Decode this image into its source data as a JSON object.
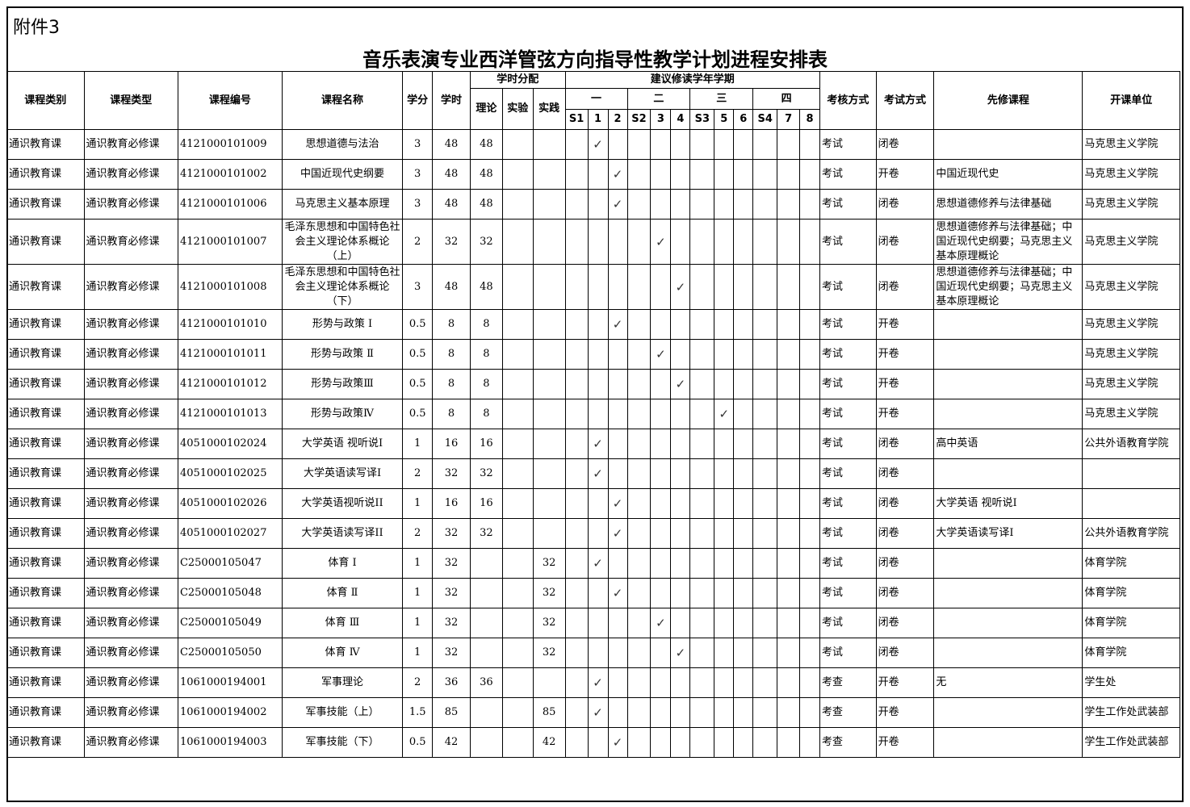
{
  "attachment": "附件3",
  "title": "音乐表演专业西洋管弦方向指导性教学计划进程安排表",
  "headers": {
    "category": "课程类别",
    "type": "课程类型",
    "code": "课程编号",
    "name": "课程名称",
    "credit": "学分",
    "hours": "学时",
    "hour_dist": "学时分配",
    "theory": "理论",
    "experiment": "实验",
    "practice": "实践",
    "semesters": "建议修读学年学期",
    "years": [
      "一",
      "二",
      "三",
      "四"
    ],
    "terms": [
      "S1",
      "1",
      "2",
      "S2",
      "3",
      "4",
      "S3",
      "5",
      "6",
      "S4",
      "7",
      "8"
    ],
    "assess": "考核方式",
    "exam": "考试方式",
    "prereq": "先修课程",
    "dept": "开课单位"
  },
  "check_mark": "✓",
  "rows": [
    {
      "category": "通识教育课",
      "type": "通识教育必修课",
      "code": "4121000101009",
      "name": "思想道德与法治",
      "credit": "3",
      "hours": "48",
      "theory": "48",
      "experiment": "",
      "practice": "",
      "term": "1",
      "assess": "考试",
      "exam": "闭卷",
      "prereq": "",
      "dept": "马克思主义学院"
    },
    {
      "category": "通识教育课",
      "type": "通识教育必修课",
      "code": "4121000101002",
      "name": "中国近现代史纲要",
      "credit": "3",
      "hours": "48",
      "theory": "48",
      "experiment": "",
      "practice": "",
      "term": "2",
      "assess": "考试",
      "exam": "开卷",
      "prereq": "中国近现代史",
      "dept": "马克思主义学院"
    },
    {
      "category": "通识教育课",
      "type": "通识教育必修课",
      "code": "4121000101006",
      "name": "马克思主义基本原理",
      "credit": "3",
      "hours": "48",
      "theory": "48",
      "experiment": "",
      "practice": "",
      "term": "2",
      "assess": "考试",
      "exam": "闭卷",
      "prereq": "思想道德修养与法律基础",
      "dept": "马克思主义学院"
    },
    {
      "category": "通识教育课",
      "type": "通识教育必修课",
      "code": "4121000101007",
      "name": "毛泽东思想和中国特色社会主义理论体系概论（上）",
      "credit": "2",
      "hours": "32",
      "theory": "32",
      "experiment": "",
      "practice": "",
      "term": "3",
      "assess": "考试",
      "exam": "闭卷",
      "prereq": "思想道德修养与法律基础；中国近现代史纲要；马克思主义基本原理概论",
      "dept": "马克思主义学院",
      "tall": true
    },
    {
      "category": "通识教育课",
      "type": "通识教育必修课",
      "code": "4121000101008",
      "name": "毛泽东思想和中国特色社会主义理论体系概论（下）",
      "credit": "3",
      "hours": "48",
      "theory": "48",
      "experiment": "",
      "practice": "",
      "term": "4",
      "assess": "考试",
      "exam": "闭卷",
      "prereq": "思想道德修养与法律基础；中国近现代史纲要；马克思主义基本原理概论",
      "dept": "马克思主义学院",
      "tall": true
    },
    {
      "category": "通识教育课",
      "type": "通识教育必修课",
      "code": "4121000101010",
      "name": "形势与政策 Ⅰ",
      "credit": "0.5",
      "hours": "8",
      "theory": "8",
      "experiment": "",
      "practice": "",
      "term": "2",
      "assess": "考试",
      "exam": "开卷",
      "prereq": "",
      "dept": "马克思主义学院"
    },
    {
      "category": "通识教育课",
      "type": "通识教育必修课",
      "code": "4121000101011",
      "name": "形势与政策 Ⅱ",
      "credit": "0.5",
      "hours": "8",
      "theory": "8",
      "experiment": "",
      "practice": "",
      "term": "3",
      "assess": "考试",
      "exam": "开卷",
      "prereq": "",
      "dept": "马克思主义学院"
    },
    {
      "category": "通识教育课",
      "type": "通识教育必修课",
      "code": "4121000101012",
      "name": "形势与政策Ⅲ",
      "credit": "0.5",
      "hours": "8",
      "theory": "8",
      "experiment": "",
      "practice": "",
      "term": "4",
      "assess": "考试",
      "exam": "开卷",
      "prereq": "",
      "dept": "马克思主义学院"
    },
    {
      "category": "通识教育课",
      "type": "通识教育必修课",
      "code": "4121000101013",
      "name": "形势与政策Ⅳ",
      "credit": "0.5",
      "hours": "8",
      "theory": "8",
      "experiment": "",
      "practice": "",
      "term": "5",
      "assess": "考试",
      "exam": "开卷",
      "prereq": "",
      "dept": "马克思主义学院"
    },
    {
      "category": "通识教育课",
      "type": "通识教育必修课",
      "code": "4051000102024",
      "name": "大学英语 视听说Ⅰ",
      "credit": "1",
      "hours": "16",
      "theory": "16",
      "experiment": "",
      "practice": "",
      "term": "1",
      "assess": "考试",
      "exam": "闭卷",
      "prereq": "高中英语",
      "dept": "公共外语教育学院"
    },
    {
      "category": "通识教育课",
      "type": "通识教育必修课",
      "code": "4051000102025",
      "name": "大学英语读写译Ⅰ",
      "credit": "2",
      "hours": "32",
      "theory": "32",
      "experiment": "",
      "practice": "",
      "term": "1",
      "assess": "考试",
      "exam": "闭卷",
      "prereq": "",
      "dept": ""
    },
    {
      "category": "通识教育课",
      "type": "通识教育必修课",
      "code": "4051000102026",
      "name": "大学英语视听说II",
      "credit": "1",
      "hours": "16",
      "theory": "16",
      "experiment": "",
      "practice": "",
      "term": "2",
      "assess": "考试",
      "exam": "闭卷",
      "prereq": "大学英语 视听说Ⅰ",
      "dept": ""
    },
    {
      "category": "通识教育课",
      "type": "通识教育必修课",
      "code": "4051000102027",
      "name": "大学英语读写译II",
      "credit": "2",
      "hours": "32",
      "theory": "32",
      "experiment": "",
      "practice": "",
      "term": "2",
      "assess": "考试",
      "exam": "闭卷",
      "prereq": "大学英语读写译Ⅰ",
      "dept": "公共外语教育学院"
    },
    {
      "category": "通识教育课",
      "type": "通识教育必修课",
      "code": "C25000105047",
      "name": "体育 Ⅰ",
      "credit": "1",
      "hours": "32",
      "theory": "",
      "experiment": "",
      "practice": "32",
      "term": "1",
      "assess": "考试",
      "exam": "闭卷",
      "prereq": "",
      "dept": "体育学院"
    },
    {
      "category": "通识教育课",
      "type": "通识教育必修课",
      "code": "C25000105048",
      "name": "体育 Ⅱ",
      "credit": "1",
      "hours": "32",
      "theory": "",
      "experiment": "",
      "practice": "32",
      "term": "2",
      "assess": "考试",
      "exam": "闭卷",
      "prereq": "",
      "dept": "体育学院"
    },
    {
      "category": "通识教育课",
      "type": "通识教育必修课",
      "code": "C25000105049",
      "name": "体育 Ⅲ",
      "credit": "1",
      "hours": "32",
      "theory": "",
      "experiment": "",
      "practice": "32",
      "term": "3",
      "assess": "考试",
      "exam": "闭卷",
      "prereq": "",
      "dept": "体育学院"
    },
    {
      "category": "通识教育课",
      "type": "通识教育必修课",
      "code": "C25000105050",
      "name": "体育 Ⅳ",
      "credit": "1",
      "hours": "32",
      "theory": "",
      "experiment": "",
      "practice": "32",
      "term": "4",
      "assess": "考试",
      "exam": "闭卷",
      "prereq": "",
      "dept": "体育学院"
    },
    {
      "category": "通识教育课",
      "type": "通识教育必修课",
      "code": "1061000194001",
      "name": "军事理论",
      "credit": "2",
      "hours": "36",
      "theory": "36",
      "experiment": "",
      "practice": "",
      "term": "1",
      "assess": "考查",
      "exam": "开卷",
      "prereq": "无",
      "dept": "学生处"
    },
    {
      "category": "通识教育课",
      "type": "通识教育必修课",
      "code": "1061000194002",
      "name": "军事技能（上）",
      "credit": "1.5",
      "hours": "85",
      "theory": "",
      "experiment": "",
      "practice": "85",
      "term": "1",
      "assess": "考查",
      "exam": "开卷",
      "prereq": "",
      "dept": "学生工作处武装部"
    },
    {
      "category": "通识教育课",
      "type": "通识教育必修课",
      "code": "1061000194003",
      "name": "军事技能（下）",
      "credit": "0.5",
      "hours": "42",
      "theory": "",
      "experiment": "",
      "practice": "42",
      "term": "2",
      "assess": "考查",
      "exam": "开卷",
      "prereq": "",
      "dept": "学生工作处武装部"
    }
  ]
}
